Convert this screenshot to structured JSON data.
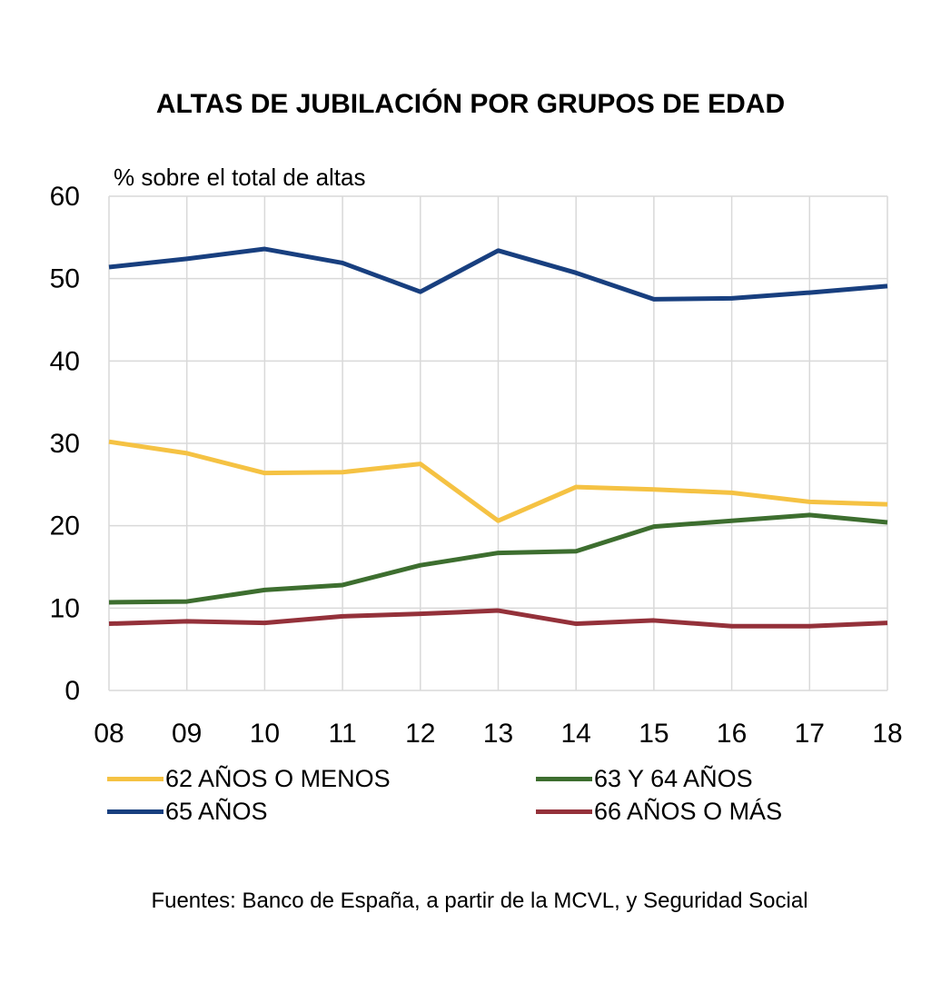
{
  "chart_data": {
    "type": "line",
    "title": "ALTAS DE JUBILACIÓN POR GRUPOS DE EDAD",
    "ylabel": "% sobre el total de altas",
    "xlabel": "",
    "categories": [
      "08",
      "09",
      "10",
      "11",
      "12",
      "13",
      "14",
      "15",
      "16",
      "17",
      "18"
    ],
    "ylim": [
      0,
      60
    ],
    "yticks": [
      "0",
      "10",
      "20",
      "30",
      "40",
      "50",
      "60"
    ],
    "grid": true,
    "legend_position": "bottom",
    "series": [
      {
        "name": "62 AÑOS O MENOS",
        "color": "#F5C243",
        "values": [
          30.2,
          28.8,
          26.4,
          26.5,
          27.5,
          20.6,
          24.7,
          24.4,
          24.0,
          22.9,
          22.6
        ]
      },
      {
        "name": "63 Y 64 AÑOS",
        "color": "#3D6E2F",
        "values": [
          10.7,
          10.8,
          12.2,
          12.8,
          15.2,
          16.7,
          16.9,
          19.9,
          20.6,
          21.3,
          20.4
        ]
      },
      {
        "name": "65 AÑOS",
        "color": "#183F7F",
        "values": [
          51.4,
          52.4,
          53.6,
          51.9,
          48.4,
          53.4,
          50.7,
          47.5,
          47.6,
          48.3,
          49.1
        ]
      },
      {
        "name": "66 AÑOS O MÁS",
        "color": "#94313A",
        "values": [
          8.1,
          8.4,
          8.2,
          9.0,
          9.3,
          9.7,
          8.1,
          8.5,
          7.8,
          7.8,
          8.2
        ]
      }
    ],
    "source": "Fuentes: Banco de España, a partir de la MCVL, y Seguridad Social"
  }
}
